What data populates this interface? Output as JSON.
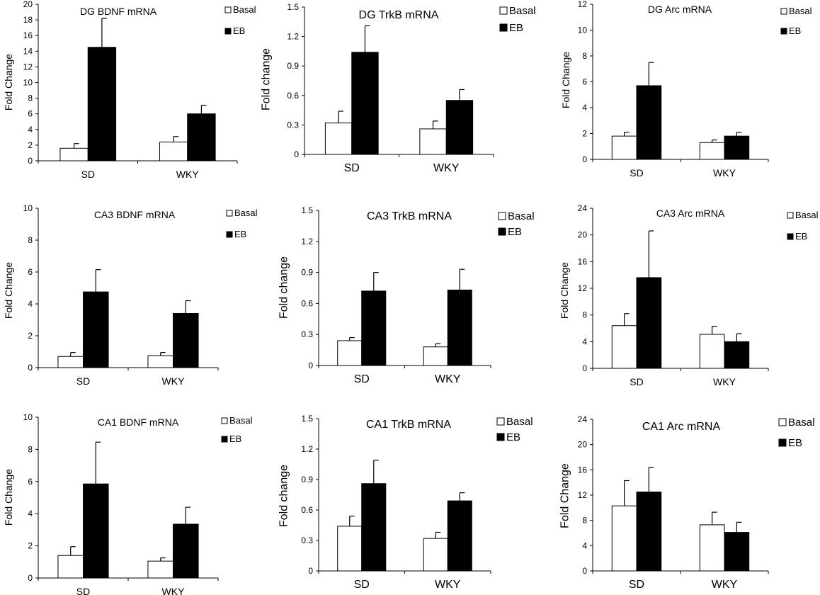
{
  "legend": {
    "basal": "Basal",
    "eb": "EB"
  },
  "categories": [
    "SD",
    "WKY"
  ],
  "chart_data": [
    {
      "type": "bar",
      "title": "DG BDNF mRNA",
      "ylabel": "Fold Change",
      "categories": [
        "SD",
        "WKY"
      ],
      "ylim": [
        0,
        20
      ],
      "ticks": [
        0,
        2,
        4,
        6,
        8,
        10,
        12,
        14,
        16,
        18,
        20
      ],
      "series": [
        {
          "name": "Basal",
          "values": [
            1.6,
            2.4
          ],
          "errors": [
            0.6,
            0.7
          ]
        },
        {
          "name": "EB",
          "values": [
            14.5,
            6.0
          ],
          "errors": [
            3.7,
            1.1
          ]
        }
      ]
    },
    {
      "type": "bar",
      "title": "DG TrkB  mRNA",
      "ylabel": "Fold change",
      "categories": [
        "SD",
        "WKY"
      ],
      "ylim": [
        0,
        1.5
      ],
      "ticks": [
        "0",
        "0.3",
        "0.6",
        "0.9",
        "1.2",
        "1.5"
      ],
      "series": [
        {
          "name": "Basal",
          "values": [
            0.32,
            0.26
          ],
          "errors": [
            0.12,
            0.08
          ]
        },
        {
          "name": "EB",
          "values": [
            1.04,
            0.55
          ],
          "errors": [
            0.27,
            0.11
          ]
        }
      ]
    },
    {
      "type": "bar",
      "title": "DG Arc mRNA",
      "ylabel": "Fold Change",
      "categories": [
        "SD",
        "WKY"
      ],
      "ylim": [
        0,
        12
      ],
      "ticks": [
        0,
        2,
        4,
        6,
        8,
        10,
        12
      ],
      "series": [
        {
          "name": "Basal",
          "values": [
            1.8,
            1.3
          ],
          "errors": [
            0.3,
            0.2
          ]
        },
        {
          "name": "EB",
          "values": [
            5.7,
            1.8
          ],
          "errors": [
            1.8,
            0.3
          ]
        }
      ]
    },
    {
      "type": "bar",
      "title": "CA3 BDNF mRNA",
      "ylabel": "Fold Change",
      "categories": [
        "SD",
        "WKY"
      ],
      "ylim": [
        0,
        10
      ],
      "ticks": [
        0,
        2,
        4,
        6,
        8,
        10
      ],
      "series": [
        {
          "name": "Basal",
          "values": [
            0.7,
            0.75
          ],
          "errors": [
            0.25,
            0.2
          ]
        },
        {
          "name": "EB",
          "values": [
            4.75,
            3.4
          ],
          "errors": [
            1.4,
            0.8
          ]
        }
      ]
    },
    {
      "type": "bar",
      "title": "CA3 TrkB  mRNA",
      "ylabel": "Fold change",
      "categories": [
        "SD",
        "WKY"
      ],
      "ylim": [
        0,
        1.5
      ],
      "ticks": [
        "0",
        "0.3",
        "0.6",
        "0.9",
        "1.2",
        "1.5"
      ],
      "series": [
        {
          "name": "Basal",
          "values": [
            0.24,
            0.18
          ],
          "errors": [
            0.03,
            0.03
          ]
        },
        {
          "name": "EB",
          "values": [
            0.72,
            0.73
          ],
          "errors": [
            0.18,
            0.2
          ]
        }
      ]
    },
    {
      "type": "bar",
      "title": "CA3 Arc mRNA",
      "ylabel": "Fold Change",
      "categories": [
        "SD",
        "WKY"
      ],
      "ylim": [
        0,
        24
      ],
      "ticks": [
        0,
        4,
        8,
        12,
        16,
        20,
        24
      ],
      "series": [
        {
          "name": "Basal",
          "values": [
            6.4,
            5.1
          ],
          "errors": [
            1.8,
            1.2
          ]
        },
        {
          "name": "EB",
          "values": [
            13.6,
            4.0
          ],
          "errors": [
            7.0,
            1.2
          ]
        }
      ]
    },
    {
      "type": "bar",
      "title": "CA1 BDNF mRNA",
      "ylabel": "Fold Change",
      "categories": [
        "SD",
        "WKY"
      ],
      "ylim": [
        0,
        10
      ],
      "ticks": [
        0,
        2,
        4,
        6,
        8,
        10
      ],
      "series": [
        {
          "name": "Basal",
          "values": [
            1.4,
            1.05
          ],
          "errors": [
            0.55,
            0.2
          ]
        },
        {
          "name": "EB",
          "values": [
            5.85,
            3.35
          ],
          "errors": [
            2.6,
            1.05
          ]
        }
      ]
    },
    {
      "type": "bar",
      "title": "CA1 TrkB  mRNA",
      "ylabel": "Fold change",
      "categories": [
        "SD",
        "WKY"
      ],
      "ylim": [
        0,
        1.5
      ],
      "ticks": [
        "0",
        "0.3",
        "0.6",
        "0.9",
        "1.2",
        "1.5"
      ],
      "series": [
        {
          "name": "Basal",
          "values": [
            0.44,
            0.32
          ],
          "errors": [
            0.1,
            0.06
          ]
        },
        {
          "name": "EB",
          "values": [
            0.86,
            0.69
          ],
          "errors": [
            0.23,
            0.08
          ]
        }
      ]
    },
    {
      "type": "bar",
      "title": "CA1 Arc mRNA",
      "ylabel": "Fold Change",
      "categories": [
        "SD",
        "WKY"
      ],
      "ylim": [
        0,
        24
      ],
      "ticks": [
        0,
        4,
        8,
        12,
        16,
        20,
        24
      ],
      "series": [
        {
          "name": "Basal",
          "values": [
            10.3,
            7.3
          ],
          "errors": [
            4.0,
            2.0
          ]
        },
        {
          "name": "EB",
          "values": [
            12.5,
            6.1
          ],
          "errors": [
            3.9,
            1.6
          ]
        }
      ]
    }
  ]
}
